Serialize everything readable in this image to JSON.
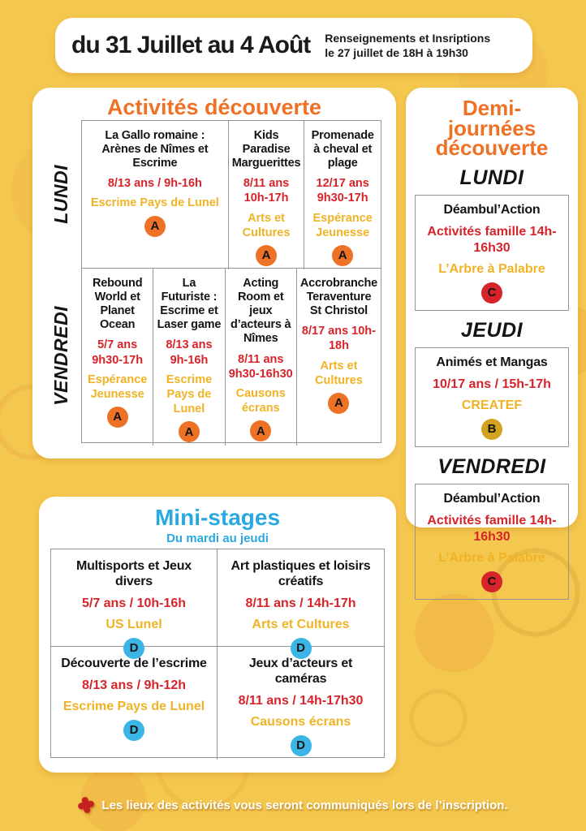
{
  "header": {
    "title": "du 31 Juillet au 4 Août",
    "info_line1": "Renseignements et Insriptions",
    "info_line2": "le 27 juillet de 18H à 19h30"
  },
  "activites": {
    "title": "Activités découverte",
    "rows": [
      {
        "day": "LUNDI",
        "cells": [
          {
            "title": "La Gallo romaine : Arènes de Nîmes et Escrime",
            "ages": "8/13 ans / 9h-16h",
            "venue": "Escrime Pays de Lunel",
            "badge": "A"
          },
          {
            "title": "Kids Paradise Marguerittes",
            "ages": "8/11 ans 10h-17h",
            "venue": "Arts et Cultures",
            "badge": "A"
          },
          {
            "title": "Promenade à cheval et plage",
            "ages": "12/17 ans 9h30-17h",
            "venue": "Espérance Jeunesse",
            "badge": "A"
          }
        ]
      },
      {
        "day": "VENDREDI",
        "cells": [
          {
            "title": "Rebound World et Planet Ocean",
            "ages": "5/7 ans 9h30-17h",
            "venue": "Espérance Jeunesse",
            "badge": "A"
          },
          {
            "title": "La Futuriste : Escrime et Laser game",
            "ages": "8/13 ans 9h-16h",
            "venue": "Escrime Pays de Lunel",
            "badge": "A"
          },
          {
            "title": "Acting Room et jeux d’acteurs à Nîmes",
            "ages": "8/11 ans 9h30-16h30",
            "venue": "Causons écrans",
            "badge": "A"
          },
          {
            "title": "Accrobranche Teraventure St Christol",
            "ages": "8/17 ans 10h-18h",
            "venue": "Arts et Cultures",
            "badge": "A"
          }
        ]
      }
    ]
  },
  "demi": {
    "title_lines": [
      "Demi-",
      "journées",
      "découverte"
    ],
    "sections": [
      {
        "day": "LUNDI",
        "title": "Déambul’Action",
        "ages": "Activités famille 14h-16h30",
        "venue": "L’Arbre à Palabre",
        "badge": "C"
      },
      {
        "day": "JEUDI",
        "title": "Animés et Mangas",
        "ages": "10/17 ans / 15h-17h",
        "venue": "CREATEF",
        "badge": "B"
      },
      {
        "day": "VENDREDI",
        "title": "Déambul’Action",
        "ages": "Activités famille 14h-16h30",
        "venue": "L’Arbre à Palabre",
        "badge": "C"
      }
    ]
  },
  "ministages": {
    "title": "Mini-stages",
    "subtitle": "Du mardi au jeudi",
    "cells": [
      {
        "title": "Multisports et Jeux divers",
        "ages": "5/7 ans / 10h-16h",
        "venue": "US Lunel",
        "badge": "D"
      },
      {
        "title": "Art plastiques et loisirs créatifs",
        "ages": "8/11 ans / 14h-17h",
        "venue": "Arts et Cultures",
        "badge": "D"
      },
      {
        "title": "Découverte de l’escrime",
        "ages": "8/13 ans / 9h-12h",
        "venue": "Escrime Pays de Lunel",
        "badge": "D"
      },
      {
        "title": "Jeux d’acteurs et caméras",
        "ages": "8/11 ans / 14h-17h30",
        "venue": "Causons écrans",
        "badge": "D"
      }
    ]
  },
  "footer": {
    "note": "Les lieux des activités vous seront communiqués lors de l’inscription."
  },
  "colors": {
    "background": "#f4c74e",
    "accent_orange": "#ee7125",
    "text_red": "#d7232a",
    "text_yellow": "#f0b325",
    "accent_blue": "#29a9e0",
    "badge_orange": "#ed7226",
    "badge_red": "#d7232a",
    "badge_gold": "#d2a31f",
    "badge_blue": "#3bb5e5"
  }
}
